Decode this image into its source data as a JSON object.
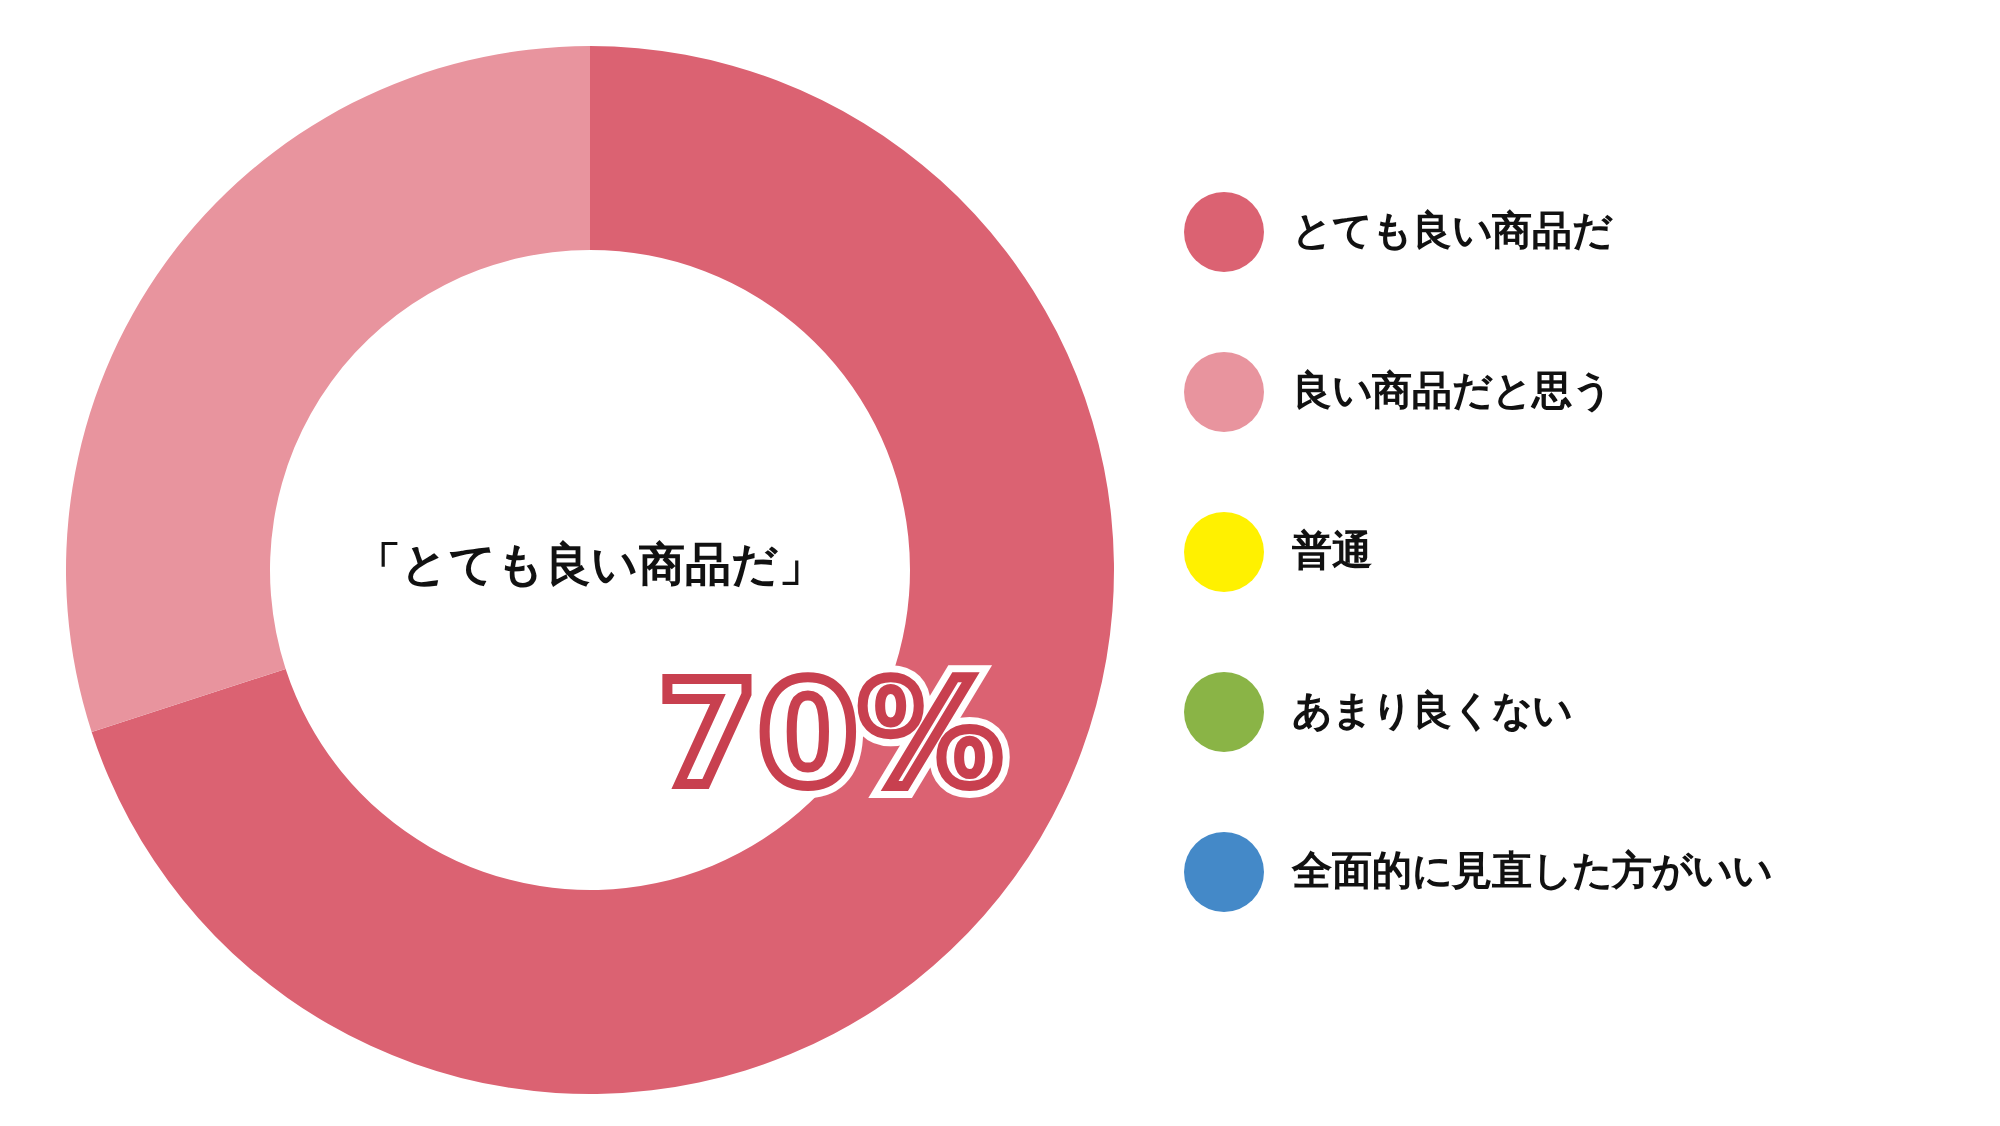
{
  "chart_data": {
    "type": "donut",
    "categories": [
      "とても良い商品だ",
      "良い商品だと思う",
      "普通",
      "あまり良くない",
      "全面的に見直した方がいい"
    ],
    "values": [
      70,
      30,
      0,
      0,
      0
    ],
    "colors": [
      "#db6272",
      "#e8949e",
      "#fff100",
      "#8ab446",
      "#4489c8"
    ],
    "annotations": [
      "「とても良い商品だ」",
      "70%"
    ],
    "legend": "right"
  }
}
